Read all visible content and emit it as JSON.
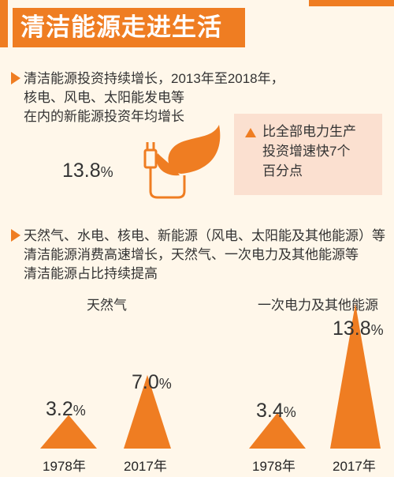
{
  "title": "清洁能源走进生活",
  "section1": {
    "text_lines": [
      "清洁能源投资持续增长，2013年至2018年，",
      "核电、风电、太阳能发电等",
      "在内的新能源投资年均增长"
    ],
    "growth_value": "13.8",
    "growth_unit": "%",
    "icon": "plug-leaf-icon",
    "callout_lines": [
      "比全部电力生产",
      "投资增速快7个",
      "百分点"
    ]
  },
  "section2": {
    "text_lines": [
      "天然气、水电、核电、新能源（风电、太阳能及其他能源）等",
      "清洁能源消费高速增长，天然气、一次电力及其他能源等",
      "清洁能源占比持续提高"
    ]
  },
  "colors": {
    "accent": "#ef7d22",
    "box": "#fbe0d0",
    "background": "#fff7ea"
  },
  "chart_data": [
    {
      "type": "bar",
      "title": "天然气",
      "categories": [
        "1978年",
        "2017年"
      ],
      "values": [
        3.2,
        7.0
      ],
      "value_labels": [
        "3.2",
        "7.0"
      ],
      "unit": "%"
    },
    {
      "type": "bar",
      "title": "一次电力及其他能源",
      "categories": [
        "1978年",
        "2017年"
      ],
      "values": [
        3.4,
        13.8
      ],
      "value_labels": [
        "3.4",
        "13.8"
      ],
      "unit": "%"
    }
  ]
}
